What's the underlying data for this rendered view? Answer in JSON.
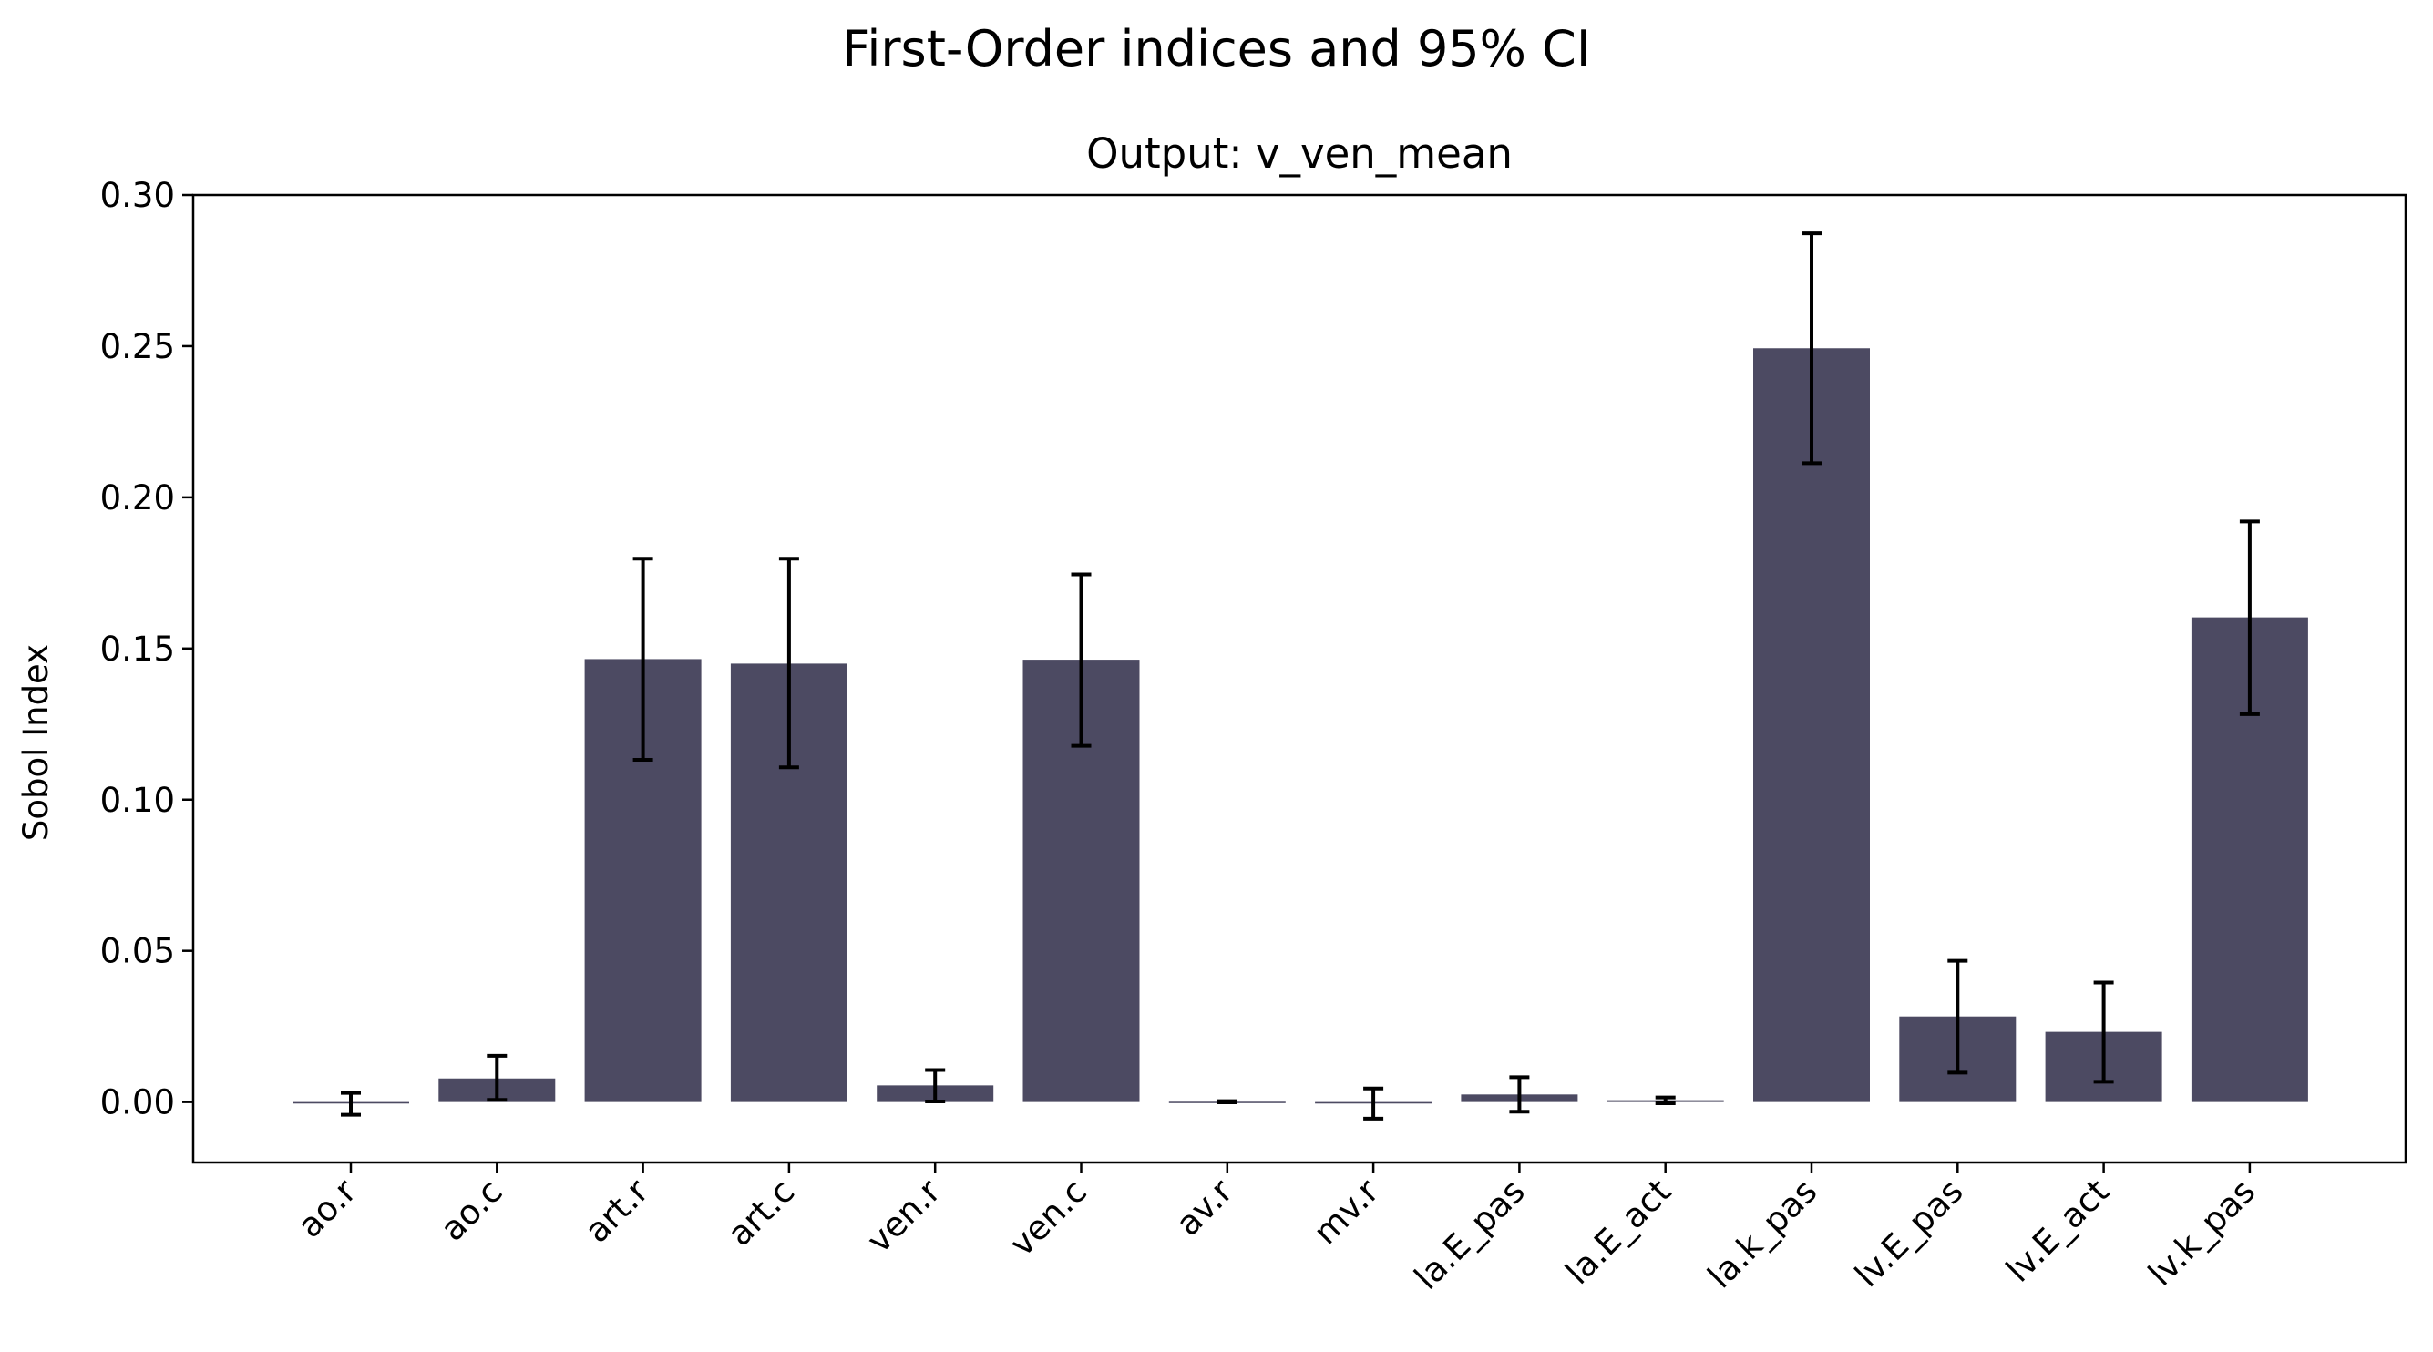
{
  "figure_title": "First-Order indices and 95% CI",
  "chart_data": {
    "type": "bar",
    "title": "Output: v_ven_mean",
    "xlabel": "",
    "ylabel": "Sobol Index",
    "ylim": [
      -0.02,
      0.3
    ],
    "yticks": [
      0.0,
      0.05,
      0.1,
      0.15,
      0.2,
      0.25,
      0.3
    ],
    "ytick_labels": [
      "0.00",
      "0.05",
      "0.10",
      "0.15",
      "0.20",
      "0.25",
      "0.30"
    ],
    "categories": [
      "ao.r",
      "ao.c",
      "art.r",
      "art.c",
      "ven.r",
      "ven.c",
      "av.r",
      "mv.r",
      "la.E_pas",
      "la.E_act",
      "la.k_pas",
      "lv.E_pas",
      "lv.E_act",
      "lv.k_pas"
    ],
    "values": [
      -0.0005,
      0.0078,
      0.1465,
      0.145,
      0.0055,
      0.1463,
      0.0001,
      -0.0005,
      0.0025,
      0.0006,
      0.2493,
      0.0283,
      0.0232,
      0.1603
    ],
    "ci_low": [
      -0.0042,
      0.0007,
      0.1132,
      0.1107,
      0.0002,
      0.1178,
      -0.0001,
      -0.0055,
      -0.0032,
      -0.0004,
      0.2113,
      0.0097,
      0.0067,
      0.1283
    ],
    "ci_high": [
      0.003,
      0.0153,
      0.1797,
      0.1797,
      0.0106,
      0.1745,
      0.0003,
      0.0045,
      0.0082,
      0.0015,
      0.2873,
      0.0467,
      0.0395,
      0.192
    ],
    "bar_color": "#4c4a62",
    "errorbar_color": "#000000",
    "grid": false,
    "legend": "none"
  }
}
